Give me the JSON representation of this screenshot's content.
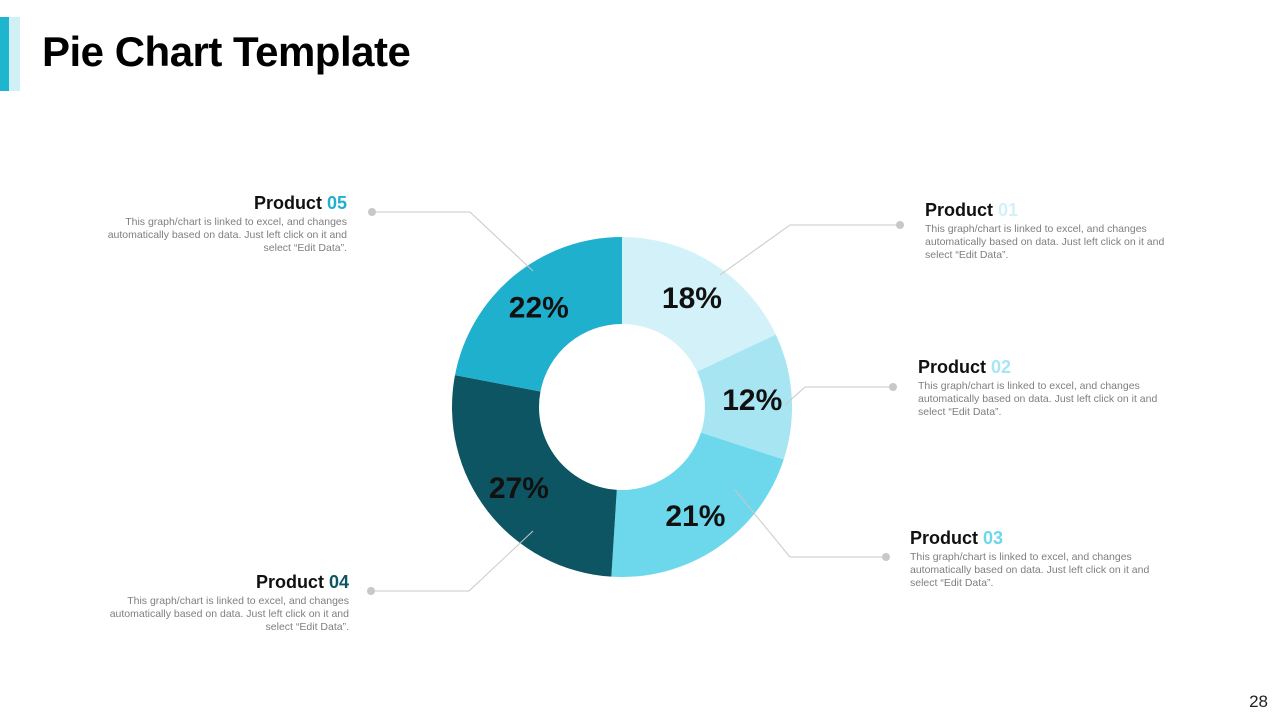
{
  "page": {
    "title": "Pie Chart Template",
    "page_number": "28"
  },
  "colors": {
    "accent": "#1fb5cf",
    "accent_light": "#d1f0f6",
    "leader_line": "#c8c8c8"
  },
  "products": [
    {
      "name": "Product",
      "number": "01",
      "percent_label": "18%",
      "color": "#d3f1f8",
      "number_color": "#d3f1f8",
      "desc": "This graph/chart is linked to excel, and changes automatically based on data. Just left click on it and select “Edit Data”."
    },
    {
      "name": "Product",
      "number": "02",
      "percent_label": "12%",
      "color": "#a8e5f2",
      "number_color": "#a8e5f2",
      "desc": "This graph/chart is linked to excel, and changes automatically based on data. Just left click on it and select “Edit Data”."
    },
    {
      "name": "Product",
      "number": "03",
      "percent_label": "21%",
      "color": "#6dd7eb",
      "number_color": "#6dd7eb",
      "desc": "This graph/chart is linked to excel, and changes automatically based on data. Just left click on it and select “Edit Data”."
    },
    {
      "name": "Product",
      "number": "04",
      "percent_label": "27%",
      "color": "#0e5563",
      "number_color": "#0e5563",
      "desc": "This graph/chart is linked to excel, and changes automatically based on data. Just left click on it and select “Edit Data”."
    },
    {
      "name": "Product",
      "number": "05",
      "percent_label": "22%",
      "color": "#1fb0ce",
      "number_color": "#1fb0ce",
      "desc": "This graph/chart is linked to excel, and changes automatically based on data. Just left click on it and select “Edit Data”."
    }
  ],
  "chart_data": {
    "type": "pie",
    "variant": "donut",
    "title": "Pie Chart Template",
    "categories": [
      "Product 01",
      "Product 02",
      "Product 03",
      "Product 04",
      "Product 05"
    ],
    "values": [
      18,
      12,
      21,
      27,
      22
    ],
    "unit": "%",
    "start_angle_deg": 0,
    "direction": "clockwise",
    "legend": "callouts"
  }
}
